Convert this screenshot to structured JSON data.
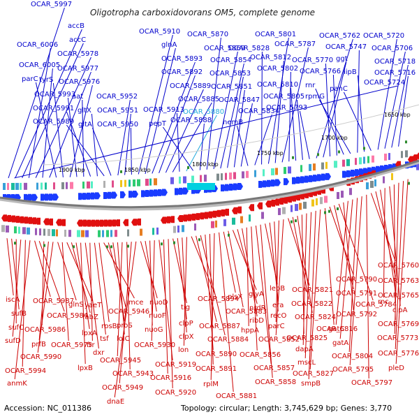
{
  "title": "Oligotropha carboxidovorans OM5, complete genome",
  "footer": {
    "accession": "Accession: NC_011386",
    "topology": "Topology: circular; Length: 3,745,629 bp; Genes: 3,770"
  },
  "scale_labels": [
    "1900 kbp",
    "1850 kbp",
    "1800 kbp",
    "1750 kbp",
    "1700 kbp",
    "1650 kbp"
  ],
  "colors": {
    "forward": "#0000cc",
    "reverse": "#cc0000",
    "highlight": "#22aadd",
    "backbone": "#777777"
  },
  "top_labels": [
    {
      "text": "OCAR_5997"
    },
    {
      "text": "accB"
    },
    {
      "text": "accC"
    },
    {
      "text": "OCAR_6006"
    },
    {
      "text": "OCAR_5978"
    },
    {
      "text": "OCAR_6005"
    },
    {
      "text": "OCAR_5977"
    },
    {
      "text": "parC"
    },
    {
      "text": "tyrS"
    },
    {
      "text": "OCAR_5976"
    },
    {
      "text": "OCAR_5993"
    },
    {
      "text": "aat"
    },
    {
      "text": "OCAR_5991"
    },
    {
      "text": "gltX"
    },
    {
      "text": "OCAR_5989"
    },
    {
      "text": "gltA"
    },
    {
      "text": "OCAR_5952"
    },
    {
      "text": "OCAR_5951"
    },
    {
      "text": "OCAR_5950"
    },
    {
      "text": "OCAR_5910"
    },
    {
      "text": "glnA"
    },
    {
      "text": "OCAR_5893"
    },
    {
      "text": "OCAR_5892"
    },
    {
      "text": "OCAR_5889"
    },
    {
      "text": "OCAR_5885"
    },
    {
      "text": "OCAR_5913"
    },
    {
      "text": "OCAR_5880",
      "highlight": true
    },
    {
      "text": "pepT"
    },
    {
      "text": "OCAR_5888"
    },
    {
      "text": "OCAR_5870"
    },
    {
      "text": "OCAR_5869"
    },
    {
      "text": "OCAR_5854"
    },
    {
      "text": "OCAR_5853"
    },
    {
      "text": "OCAR_5851"
    },
    {
      "text": "OCAR_5847"
    },
    {
      "text": "hemB"
    },
    {
      "text": "OCAR_5834"
    },
    {
      "text": "OCAR_5828"
    },
    {
      "text": "OCAR_5801"
    },
    {
      "text": "OCAR_5812"
    },
    {
      "text": "OCAR_5787"
    },
    {
      "text": "OCAR_5802"
    },
    {
      "text": "OCAR_5810"
    },
    {
      "text": "OCAR_5805"
    },
    {
      "text": "OCAR_5793"
    },
    {
      "text": "OCAR_5762"
    },
    {
      "text": "ggt"
    },
    {
      "text": "OCAR_5770"
    },
    {
      "text": "OCAR_5766"
    },
    {
      "text": "rnr"
    },
    {
      "text": "rpmG"
    },
    {
      "text": "OCAR_5747"
    },
    {
      "text": "lipB"
    },
    {
      "text": "panC"
    },
    {
      "text": "OCAR_5720"
    },
    {
      "text": "OCAR_5706"
    },
    {
      "text": "OCAR_5718"
    },
    {
      "text": "OCAR_5716"
    },
    {
      "text": "OCAR_5724"
    }
  ],
  "bottom_labels": [
    {
      "text": "iscA"
    },
    {
      "text": "sufB"
    },
    {
      "text": "sufC"
    },
    {
      "text": "sufD"
    },
    {
      "text": "OCAR_5994"
    },
    {
      "text": "anmK"
    },
    {
      "text": "OCAR_5987"
    },
    {
      "text": "OCAR_5984"
    },
    {
      "text": "OCAR_5986"
    },
    {
      "text": "prfB"
    },
    {
      "text": "OCAR_5990"
    },
    {
      "text": "glnS"
    },
    {
      "text": "OCAR_5975"
    },
    {
      "text": "yaeT"
    },
    {
      "text": "fabZ"
    },
    {
      "text": "lpxA"
    },
    {
      "text": "lpxB"
    },
    {
      "text": "dxr"
    },
    {
      "text": "frr"
    },
    {
      "text": "tsf"
    },
    {
      "text": "rpsB"
    },
    {
      "text": "mce"
    },
    {
      "text": "OCAR_5946"
    },
    {
      "text": "proS"
    },
    {
      "text": "lolC"
    },
    {
      "text": "OCAR_5945"
    },
    {
      "text": "OCAR_5943"
    },
    {
      "text": "OCAR_5949"
    },
    {
      "text": "dnaE"
    },
    {
      "text": "nuoD"
    },
    {
      "text": "nuoF"
    },
    {
      "text": "nuoG"
    },
    {
      "text": "OCAR_5930"
    },
    {
      "text": "OCAR_5919"
    },
    {
      "text": "OCAR_5916"
    },
    {
      "text": "OCAR_5920"
    },
    {
      "text": "tig"
    },
    {
      "text": "clpP"
    },
    {
      "text": "clpX"
    },
    {
      "text": "lon"
    },
    {
      "text": "OCAR_5894"
    },
    {
      "text": "OCAR_5887"
    },
    {
      "text": "OCAR_5884"
    },
    {
      "text": "OCAR_5890"
    },
    {
      "text": "OCAR_5891"
    },
    {
      "text": "rplM"
    },
    {
      "text": "OCAR_5881"
    },
    {
      "text": "plsX"
    },
    {
      "text": "OCAR_5883"
    },
    {
      "text": "glyA"
    },
    {
      "text": "nrdR"
    },
    {
      "text": "ribD"
    },
    {
      "text": "hppA"
    },
    {
      "text": "OCAR_5856"
    },
    {
      "text": "OCAR_5857"
    },
    {
      "text": "OCAR_5858"
    },
    {
      "text": "lepB"
    },
    {
      "text": "era"
    },
    {
      "text": "recO"
    },
    {
      "text": "parC"
    },
    {
      "text": "OCAR_5852"
    },
    {
      "text": "OCAR_5821"
    },
    {
      "text": "OCAR_5822"
    },
    {
      "text": "OCAR_5824"
    },
    {
      "text": "OCAR_5825"
    },
    {
      "text": "dapA"
    },
    {
      "text": "mscL"
    },
    {
      "text": "smpB"
    },
    {
      "text": "OCAR_5827"
    },
    {
      "text": "OCAR_5816"
    },
    {
      "text": "OCAR_5790"
    },
    {
      "text": "OCAR_5791"
    },
    {
      "text": "OCAR_5784"
    },
    {
      "text": "OCAR_5792"
    },
    {
      "text": "gatC"
    },
    {
      "text": "gatA"
    },
    {
      "text": "OCAR_5804"
    },
    {
      "text": "OCAR_5795"
    },
    {
      "text": "OCAR_5797"
    },
    {
      "text": "OCAR_5760"
    },
    {
      "text": "OCAR_5763"
    },
    {
      "text": "OCAR_5765"
    },
    {
      "text": "rnc"
    },
    {
      "text": "clpA"
    },
    {
      "text": "OCAR_5769"
    },
    {
      "text": "OCAR_5773"
    },
    {
      "text": "OCAR_5776"
    },
    {
      "text": "pleD"
    }
  ]
}
